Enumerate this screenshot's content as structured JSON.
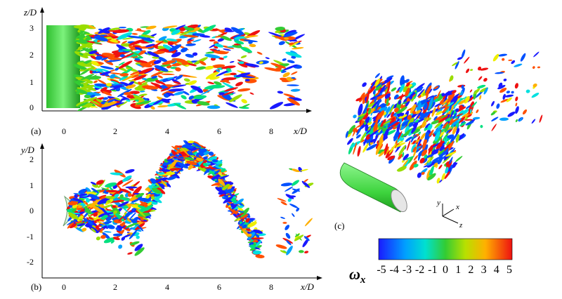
{
  "panels": {
    "a": {
      "label": "(a)",
      "x_axis": {
        "label": "x/D",
        "ticks": [
          "0",
          "2",
          "4",
          "6",
          "8"
        ]
      },
      "y_axis": {
        "label": "z/D",
        "ticks": [
          "0",
          "1",
          "2",
          "3"
        ]
      }
    },
    "b": {
      "label": "(b)",
      "x_axis": {
        "label": "x/D",
        "ticks": [
          "0",
          "2",
          "4",
          "6",
          "8"
        ]
      },
      "y_axis": {
        "label": "y/D",
        "ticks": [
          "-2",
          "-1",
          "0",
          "1",
          "2"
        ]
      }
    },
    "c": {
      "label": "(c)",
      "triad": {
        "y": "y",
        "x": "x",
        "z": "z"
      }
    }
  },
  "colorbar": {
    "symbol": "ω",
    "subscript": "x",
    "ticks": [
      "-5",
      "-4",
      "-3",
      "-2",
      "-1",
      "0",
      "1",
      "2",
      "3",
      "4",
      "5"
    ],
    "colors": [
      "#1a1aff",
      "#0050ff",
      "#00a0ff",
      "#00e0e0",
      "#00e080",
      "#33cc33",
      "#99dd00",
      "#eeee00",
      "#ffb000",
      "#ff5000",
      "#ee1111"
    ]
  }
}
